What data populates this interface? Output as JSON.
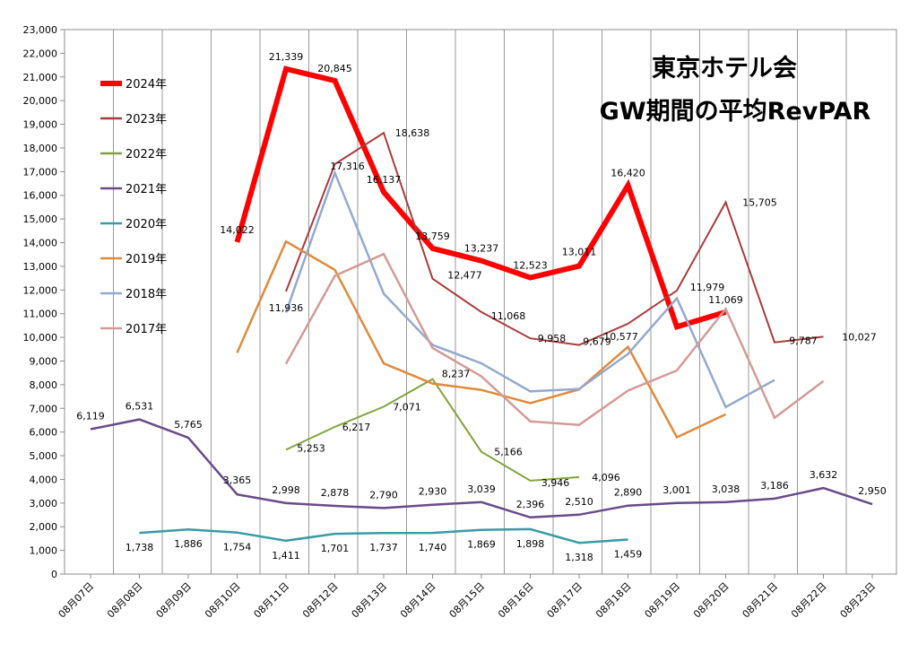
{
  "chart_data": {
    "type": "line",
    "title_lines": [
      "東京ホテル会",
      "GW期間の平均RevPAR"
    ],
    "xlabel": "",
    "ylabel": "",
    "categories": [
      "08月07日",
      "08月08日",
      "08月09日",
      "08月10日",
      "08月11日",
      "08月12日",
      "08月13日",
      "08月14日",
      "08月15日",
      "08月16日",
      "08月17日",
      "08月18日",
      "08月19日",
      "08月20日",
      "08月21日",
      "08月22日",
      "08月23日"
    ],
    "ylim": [
      0,
      23000
    ],
    "ytick_step": 1000,
    "ytick_labels": [
      "0",
      "1,000",
      "2,000",
      "3,000",
      "4,000",
      "5,000",
      "6,000",
      "7,000",
      "8,000",
      "9,000",
      "10,000",
      "11,000",
      "12,000",
      "13,000",
      "14,000",
      "15,000",
      "16,000",
      "17,000",
      "18,000",
      "19,000",
      "20,000",
      "21,000",
      "22,000",
      "23,000"
    ],
    "grid": "vertical",
    "legend_position": "top-left",
    "series": [
      {
        "name": "2024年",
        "color": "#ff0000",
        "width": 6,
        "values": [
          null,
          null,
          null,
          14022,
          21339,
          20845,
          16137,
          13759,
          13237,
          12523,
          13011,
          16420,
          10445,
          11069,
          null,
          null,
          null
        ],
        "labels": [
          "",
          "",
          "",
          "14,022",
          "21,339",
          "20,845",
          "16,137",
          "13,759",
          "13,237",
          "12,523",
          "13,011",
          "16,420",
          "",
          "11,069",
          "",
          "",
          ""
        ]
      },
      {
        "name": "2023年",
        "color": "#a93b3b",
        "width": 2,
        "values": [
          null,
          null,
          null,
          null,
          11936,
          17316,
          18638,
          12477,
          11068,
          9958,
          9679,
          10577,
          11979,
          15705,
          9787,
          10027,
          null
        ],
        "labels": [
          "",
          "",
          "",
          "",
          "11,936",
          "17,316",
          "18,638",
          "12,477",
          "11,068",
          "9,958",
          "9,679",
          "10,577",
          "11,979",
          "15,705",
          "9,787",
          "10,027",
          ""
        ]
      },
      {
        "name": "2022年",
        "color": "#83a23f",
        "width": 2,
        "values": [
          null,
          null,
          null,
          null,
          5253,
          6217,
          7071,
          8237,
          5166,
          3946,
          4096,
          null,
          null,
          null,
          null,
          null,
          null
        ],
        "labels": [
          "",
          "",
          "",
          "",
          "5,253",
          "6,217",
          "7,071",
          "8,237",
          "5,166",
          "3,946",
          "4,096",
          "",
          "",
          "",
          "",
          "",
          ""
        ]
      },
      {
        "name": "2021年",
        "color": "#6a4a8a",
        "width": 2.5,
        "values": [
          6119,
          6531,
          5765,
          3365,
          2998,
          2878,
          2790,
          2930,
          3039,
          2396,
          2510,
          2890,
          3001,
          3038,
          3186,
          3632,
          2950
        ],
        "labels": [
          "6,119",
          "6,531",
          "5,765",
          "3,365",
          "2,998",
          "2,878",
          "2,790",
          "2,930",
          "3,039",
          "2,396",
          "2,510",
          "2,890",
          "3,001",
          "3,038",
          "3,186",
          "3,632",
          "2,950"
        ]
      },
      {
        "name": "2020年",
        "color": "#3a9aa5",
        "width": 2.5,
        "values": [
          null,
          1738,
          1886,
          1754,
          1411,
          1701,
          1737,
          1740,
          1869,
          1898,
          1318,
          1459,
          null,
          null,
          null,
          null,
          null
        ],
        "labels": [
          "",
          "1,738",
          "1,886",
          "1,754",
          "1,411",
          "1,701",
          "1,737",
          "1,740",
          "1,869",
          "1,898",
          "1,318",
          "1,459",
          "",
          "",
          "",
          "",
          ""
        ]
      },
      {
        "name": "2019年",
        "color": "#e08a3c",
        "width": 2.5,
        "values": [
          null,
          null,
          null,
          9350,
          14050,
          12850,
          8900,
          8050,
          7780,
          7220,
          7800,
          9600,
          5780,
          6750,
          null,
          null,
          null
        ],
        "labels": []
      },
      {
        "name": "2018年",
        "color": "#93a9cf",
        "width": 2.5,
        "values": [
          null,
          null,
          null,
          null,
          11050,
          16950,
          11850,
          9680,
          8900,
          7720,
          7820,
          9300,
          11650,
          7050,
          8200,
          null,
          null
        ],
        "labels": []
      },
      {
        "name": "2017年",
        "color": "#d49a95",
        "width": 2.5,
        "values": [
          null,
          null,
          null,
          null,
          8880,
          12600,
          13520,
          9550,
          8350,
          6450,
          6300,
          7750,
          8600,
          11200,
          6600,
          8150,
          null
        ],
        "labels": []
      }
    ]
  }
}
